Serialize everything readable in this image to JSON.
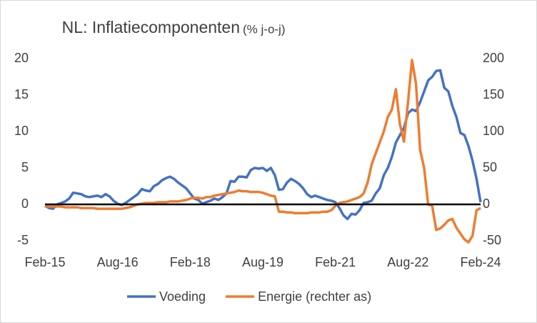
{
  "chart_data": {
    "type": "line",
    "title": "NL: Inflatiecomponenten",
    "subtitle": "(% j-o-j)",
    "categories": [
      "Feb-15",
      null,
      null,
      null,
      null,
      null,
      null,
      null,
      null,
      null,
      null,
      null,
      null,
      null,
      null,
      null,
      null,
      null,
      "Aug-16",
      null,
      null,
      null,
      null,
      null,
      null,
      null,
      null,
      null,
      null,
      null,
      null,
      null,
      null,
      null,
      null,
      null,
      "Feb-18",
      null,
      null,
      null,
      null,
      null,
      null,
      null,
      null,
      null,
      null,
      null,
      null,
      null,
      null,
      null,
      null,
      null,
      "Aug-19",
      null,
      null,
      null,
      null,
      null,
      null,
      null,
      null,
      null,
      null,
      null,
      null,
      null,
      null,
      null,
      null,
      null,
      "Feb-21",
      null,
      null,
      null,
      null,
      null,
      null,
      null,
      null,
      null,
      null,
      null,
      null,
      null,
      null,
      null,
      null,
      null,
      "Aug-22",
      null,
      null,
      null,
      null,
      null,
      null,
      null,
      null,
      null,
      null,
      null,
      null,
      null,
      null,
      null,
      null,
      null,
      "Feb-24"
    ],
    "series": [
      {
        "name": "Voeding",
        "color": "#4472c4",
        "values": [
          -0.2,
          -0.5,
          -0.6,
          0,
          0.2,
          0.4,
          0.8,
          1.6,
          1.5,
          1.4,
          1.1,
          1.0,
          1.1,
          1.2,
          1.0,
          1.4,
          1.1,
          0.5,
          0.1,
          -0.1,
          0.2,
          0.6,
          1.0,
          1.4,
          2.1,
          1.9,
          1.8,
          2.5,
          2.8,
          3.3,
          3.6,
          3.8,
          3.5,
          3.0,
          2.6,
          2.2,
          1.5,
          0.8,
          0.6,
          0.1,
          0.3,
          0.5,
          0.8,
          0.6,
          1.0,
          1.5,
          3.2,
          3.1,
          3.8,
          3.8,
          3.7,
          4.7,
          5.0,
          4.9,
          5.0,
          4.6,
          5.0,
          4.0,
          2.0,
          2.1,
          3.0,
          3.5,
          3.2,
          2.8,
          2.2,
          1.4,
          1.0,
          1.2,
          1.0,
          0.8,
          0.6,
          0.5,
          0.3,
          -0.5,
          -1.5,
          -2.0,
          -1.3,
          -1.4,
          -0.8,
          0.2,
          0.3,
          0.5,
          1.5,
          2.2,
          4.0,
          5.0,
          6.5,
          8.5,
          9.5,
          10.5,
          12.5,
          13.0,
          12.8,
          14.0,
          15.5,
          17.0,
          17.5,
          18.3,
          18.4,
          16.0,
          15.5,
          13.5,
          12.0,
          9.8,
          9.5,
          8.0,
          6.0,
          3.5,
          0.3
        ]
      },
      {
        "name": "Energie (rechter as)",
        "color": "#ed7d31",
        "axis": "y2",
        "values": [
          -2,
          -3,
          -3,
          -3,
          -3,
          -4,
          -4,
          -4,
          -4,
          -5,
          -5,
          -5,
          -5,
          -6,
          -6,
          -6,
          -6,
          -6,
          -6,
          -6,
          -5,
          -4,
          -2,
          0,
          1,
          2,
          2,
          2,
          3,
          3,
          3,
          4,
          4,
          4,
          5,
          6,
          8,
          9,
          9,
          8,
          10,
          10,
          12,
          13,
          14,
          15,
          16,
          17,
          19,
          18,
          18,
          17,
          17,
          17,
          16,
          14,
          12,
          11,
          -10,
          -10,
          -11,
          -11,
          -12,
          -12,
          -12,
          -12,
          -11,
          -11,
          -11,
          -10,
          -10,
          -8,
          -2,
          2,
          3,
          4,
          6,
          8,
          10,
          15,
          30,
          55,
          70,
          85,
          100,
          120,
          130,
          158,
          110,
          86,
          140,
          198,
          165,
          75,
          50,
          0,
          -2,
          -35,
          -33,
          -28,
          -22,
          -20,
          -32,
          -40,
          -48,
          -52,
          -43,
          -8,
          -5
        ]
      }
    ],
    "ylim": [
      -5,
      20
    ],
    "yticks": [
      -5,
      0,
      5,
      10,
      15,
      20
    ],
    "y2lim": [
      -50,
      200
    ],
    "y2ticks": [
      -50,
      0,
      50,
      100,
      150,
      200
    ],
    "legend": "bottom",
    "grid": false
  }
}
